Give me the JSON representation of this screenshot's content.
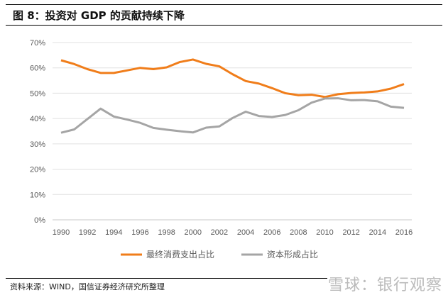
{
  "title": "图 8：投资对 GDP 的贡献持续下降",
  "source": "资料来源：WIND，国信证券经济研究所整理",
  "watermark": "雪球：银行观察",
  "chart_data": {
    "type": "line",
    "title": "",
    "xlabel": "",
    "ylabel": "",
    "x": [
      1990,
      1991,
      1992,
      1993,
      1994,
      1995,
      1996,
      1997,
      1998,
      1999,
      2000,
      2001,
      2002,
      2003,
      2004,
      2005,
      2006,
      2007,
      2008,
      2009,
      2010,
      2011,
      2012,
      2013,
      2014,
      2015,
      2016
    ],
    "x_ticks": [
      "1990",
      "1992",
      "1994",
      "1996",
      "1998",
      "2000",
      "2002",
      "2004",
      "2006",
      "2008",
      "2010",
      "2012",
      "2014",
      "2016"
    ],
    "y_ticks": [
      "0%",
      "10%",
      "20%",
      "30%",
      "40%",
      "50%",
      "60%",
      "70%"
    ],
    "ylim": [
      0,
      70
    ],
    "grid": true,
    "legend": "bottom",
    "series": [
      {
        "name": "最终消费支出占比",
        "color": "#F07D1A",
        "values": [
          63,
          61.5,
          59.5,
          58,
          58,
          59,
          60,
          59.5,
          60.2,
          62.3,
          63.3,
          61.6,
          60.6,
          57.5,
          54.8,
          53.8,
          52,
          50,
          49.2,
          49.4,
          48.5,
          49.6,
          50.1,
          50.3,
          50.7,
          51.8,
          53.6
        ]
      },
      {
        "name": "资本形成占比",
        "color": "#A5A5A5",
        "values": [
          34.4,
          35.7,
          39.8,
          43.9,
          40.8,
          39.6,
          38.3,
          36.3,
          35.6,
          35,
          34.5,
          36.4,
          36.9,
          40.2,
          42.7,
          41,
          40.6,
          41.4,
          43.3,
          46.3,
          47.9,
          48,
          47.2,
          47.3,
          46.8,
          44.7,
          44.2
        ]
      }
    ]
  }
}
